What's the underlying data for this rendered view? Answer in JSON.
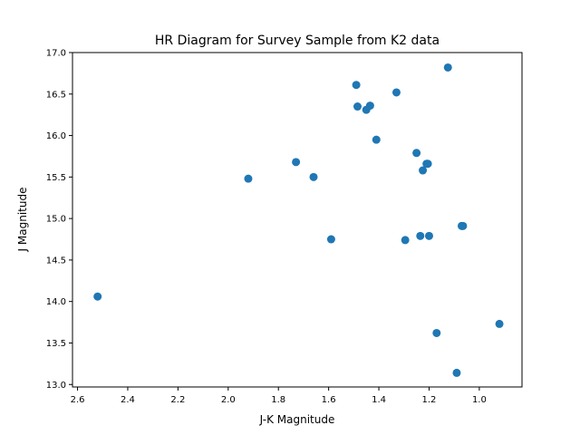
{
  "chart_data": {
    "type": "scatter",
    "title": "HR Diagram for Survey Sample from K2 data",
    "xlabel": "J-K Magnitude",
    "ylabel": "J Magnitude",
    "xlim": [
      2.62,
      0.83
    ],
    "ylim": [
      12.97,
      17.0
    ],
    "x_inverted": true,
    "xticks": [
      2.6,
      2.4,
      2.2,
      2.0,
      1.8,
      1.6,
      1.4,
      1.2,
      1.0
    ],
    "xtick_labels": [
      "2.6",
      "2.4",
      "2.2",
      "2.0",
      "1.8",
      "1.6",
      "1.4",
      "1.2",
      "1.0"
    ],
    "yticks": [
      13.0,
      13.5,
      14.0,
      14.5,
      15.0,
      15.5,
      16.0,
      16.5,
      17.0
    ],
    "ytick_labels": [
      "13.0",
      "13.5",
      "14.0",
      "14.5",
      "15.0",
      "15.5",
      "16.0",
      "16.5",
      "17.0"
    ],
    "grid": false,
    "marker_color": "#1f77b4",
    "points": [
      {
        "x": 2.52,
        "y": 14.06
      },
      {
        "x": 1.92,
        "y": 15.48
      },
      {
        "x": 1.73,
        "y": 15.68
      },
      {
        "x": 1.66,
        "y": 15.5
      },
      {
        "x": 1.59,
        "y": 14.75
      },
      {
        "x": 1.49,
        "y": 16.61
      },
      {
        "x": 1.485,
        "y": 16.35
      },
      {
        "x": 1.45,
        "y": 16.31
      },
      {
        "x": 1.435,
        "y": 16.36
      },
      {
        "x": 1.41,
        "y": 15.95
      },
      {
        "x": 1.33,
        "y": 16.52
      },
      {
        "x": 1.295,
        "y": 14.74
      },
      {
        "x": 1.25,
        "y": 15.79
      },
      {
        "x": 1.235,
        "y": 14.79
      },
      {
        "x": 1.225,
        "y": 15.58
      },
      {
        "x": 1.21,
        "y": 15.66
      },
      {
        "x": 1.205,
        "y": 15.66
      },
      {
        "x": 1.2,
        "y": 14.79
      },
      {
        "x": 1.17,
        "y": 13.62
      },
      {
        "x": 1.125,
        "y": 16.82
      },
      {
        "x": 1.09,
        "y": 13.14
      },
      {
        "x": 1.07,
        "y": 14.91
      },
      {
        "x": 1.065,
        "y": 14.91
      },
      {
        "x": 0.92,
        "y": 13.73
      }
    ]
  }
}
